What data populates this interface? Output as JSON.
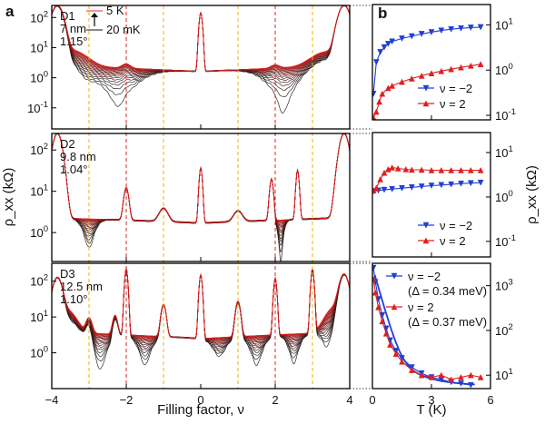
{
  "chart_data": [
    {
      "type": "line",
      "panel": "a",
      "xlabel": "Filling factor, ν",
      "ylabel": "ρ_xx (kΩ)",
      "x_ticks": [
        "−4",
        "−2",
        "0",
        "2",
        "4"
      ],
      "x_range": [
        -4,
        4
      ],
      "temperature_legend": {
        "high": "5 K",
        "low": "20 mK"
      },
      "reference_lines": {
        "red_dashed_at_nu": [
          -2,
          2
        ],
        "yellow_dashed_at_nu": [
          -3,
          -1,
          1,
          3
        ]
      },
      "subplots": [
        {
          "device": "D1",
          "label_lines": [
            "D1",
            "7 nm",
            "1.15°"
          ],
          "y_scale": "log",
          "y_ticks": [
            "10^{-1}",
            "10^{0}",
            "10^{1}",
            "10^{2}"
          ],
          "y_range_log10": [
            -1.7,
            2.4
          ]
        },
        {
          "device": "D2",
          "label_lines": [
            "D2",
            "9.8 nm",
            "1.04°"
          ],
          "y_scale": "log",
          "y_ticks": [
            "10^{0}",
            "10^{1}",
            "10^{2}"
          ],
          "y_range_log10": [
            -0.7,
            2.4
          ]
        },
        {
          "device": "D3",
          "label_lines": [
            "D3",
            "12.5 nm",
            "1.10°"
          ],
          "y_scale": "log",
          "y_ticks": [
            "10^{0}",
            "10^{1}",
            "10^{2}"
          ],
          "y_range_log10": [
            -1.0,
            2.5
          ]
        }
      ]
    },
    {
      "type": "line",
      "panel": "b",
      "xlabel": "T (K)",
      "ylabel": "ρ_xx (kΩ)",
      "x_ticks": [
        "0",
        "3",
        "6"
      ],
      "x_range": [
        0,
        6
      ],
      "subplots": [
        {
          "y_scale": "log",
          "y_ticks": [
            "10^{-1}",
            "10^{0}",
            "10^{1}"
          ],
          "y_range_log10": [
            -1.1,
            1.45
          ],
          "series": [
            {
              "name": "ν = −2",
              "color": "#1f3fd6",
              "marker": "down-triangle",
              "x": [
                0.05,
                0.2,
                0.4,
                0.6,
                0.8,
                1.0,
                1.5,
                2.0,
                2.5,
                3.0,
                3.5,
                4.0,
                4.5,
                5.0,
                5.5
              ],
              "y": [
                0.3,
                1.5,
                2.5,
                3.2,
                3.8,
                4.3,
                5.0,
                5.6,
                6.3,
                6.9,
                7.5,
                8.0,
                8.4,
                8.7,
                8.9
              ]
            },
            {
              "name": "ν = 2",
              "color": "#e02020",
              "marker": "up-triangle",
              "x": [
                0.05,
                0.2,
                0.35,
                0.5,
                0.8,
                1.0,
                1.5,
                2.0,
                2.5,
                3.0,
                3.5,
                4.0,
                4.5,
                5.0,
                5.5
              ],
              "y": [
                0.09,
                0.12,
                0.2,
                0.3,
                0.4,
                0.45,
                0.55,
                0.65,
                0.75,
                0.85,
                0.95,
                1.05,
                1.15,
                1.25,
                1.35
              ]
            }
          ]
        },
        {
          "y_scale": "log",
          "y_ticks": [
            "10^{-1}",
            "10^{0}",
            "10^{1}"
          ],
          "y_range_log10": [
            -1.35,
            1.45
          ],
          "series": [
            {
              "name": "ν = −2",
              "color": "#1f3fd6",
              "marker": "down-triangle",
              "x": [
                0.05,
                0.3,
                0.6,
                1.0,
                1.5,
                2.0,
                2.5,
                3.0,
                3.5,
                4.0,
                4.5,
                5.0,
                5.5
              ],
              "y": [
                1.35,
                1.4,
                1.45,
                1.5,
                1.58,
                1.65,
                1.72,
                1.8,
                1.86,
                1.92,
                2.0,
                2.05,
                2.1
              ]
            },
            {
              "name": "ν = 2",
              "color": "#e02020",
              "marker": "up-triangle",
              "x": [
                0.05,
                0.2,
                0.4,
                0.6,
                0.8,
                1.0,
                1.3,
                1.7,
                2.0,
                2.5,
                3.0,
                3.5,
                4.0,
                4.5,
                5.0,
                5.5
              ],
              "y": [
                1.4,
                1.6,
                2.5,
                3.5,
                4.2,
                4.6,
                4.4,
                4.2,
                4.1,
                4.1,
                4.0,
                4.0,
                4.0,
                4.0,
                4.0,
                4.0
              ]
            }
          ]
        },
        {
          "y_scale": "log",
          "y_ticks": [
            "10^{1}",
            "10^{2}",
            "10^{3}"
          ],
          "y_range_log10": [
            0.7,
            3.5
          ],
          "series": [
            {
              "name": "ν = −2",
              "gap": "(Δ = 0.34 meV)",
              "color": "#1f3fd6",
              "marker": "down-triangle",
              "x": [
                0.05,
                0.15,
                0.3,
                0.5,
                0.7,
                0.9,
                1.2,
                1.5,
                2.0,
                2.5,
                3.0,
                3.5,
                4.0,
                4.5,
                5.0
              ],
              "y": [
                2500,
                1200,
                500,
                220,
                110,
                60,
                35,
                24,
                15,
                11,
                9,
                8,
                7,
                6.5,
                6
              ]
            },
            {
              "name": "ν = 2",
              "gap": "(Δ = 0.37 meV)",
              "color": "#e02020",
              "marker": "up-triangle",
              "x": [
                0.05,
                0.15,
                0.3,
                0.5,
                0.7,
                0.9,
                1.2,
                1.5,
                2.0,
                2.5,
                3.0,
                3.5,
                4.0,
                4.5,
                5.0,
                5.5
              ],
              "y": [
                1400,
                700,
                330,
                160,
                85,
                48,
                30,
                20,
                13,
                10,
                9,
                10,
                8,
                9,
                10,
                9
              ]
            }
          ],
          "fit": {
            "color": "#1f3fd6"
          }
        }
      ]
    }
  ]
}
